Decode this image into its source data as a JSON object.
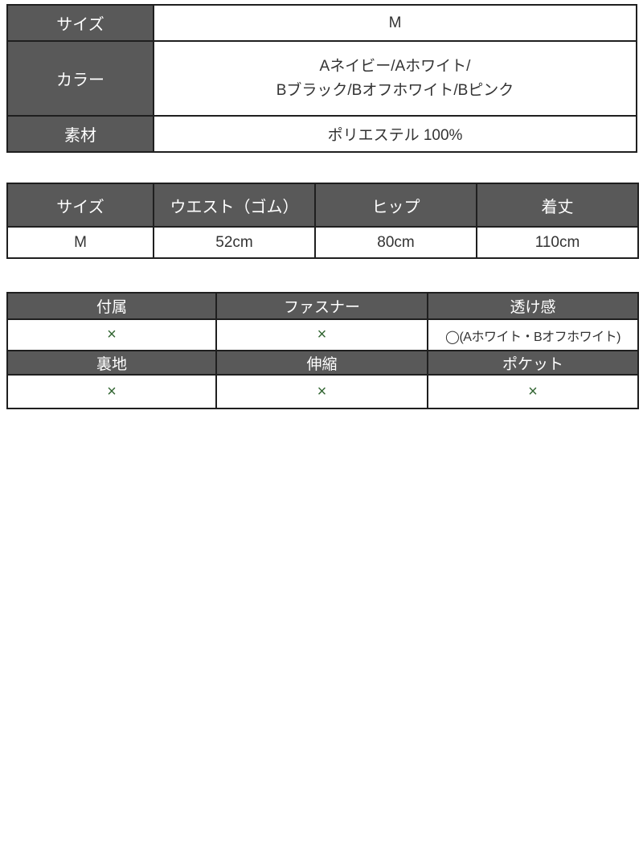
{
  "colors": {
    "header_bg": "#595959",
    "header_text": "#ffffff",
    "body_text": "#333333",
    "border": "#1f1f1f",
    "x_mark": "#336633"
  },
  "spec_table": {
    "rows": [
      {
        "label": "サイズ",
        "value": "M"
      },
      {
        "label": "カラー",
        "value": "Aネイビー/Aホワイト/\nBブラック/Bオフホワイト/Bピンク"
      },
      {
        "label": "素材",
        "value": "ポリエステル 100%"
      }
    ]
  },
  "size_table": {
    "headers": [
      "サイズ",
      "ウエスト（ゴム）",
      "ヒップ",
      "着丈"
    ],
    "row": [
      "M",
      "52cm",
      "80cm",
      "110cm"
    ]
  },
  "features_table": {
    "header_row_1": [
      "付属",
      "ファスナー",
      "透け感"
    ],
    "value_row_1": [
      "×",
      "×",
      "◯(Aホワイト・Bオフホワイト)"
    ],
    "header_row_2": [
      "裏地",
      "伸縮",
      "ポケット"
    ],
    "value_row_2": [
      "×",
      "×",
      "×"
    ]
  }
}
